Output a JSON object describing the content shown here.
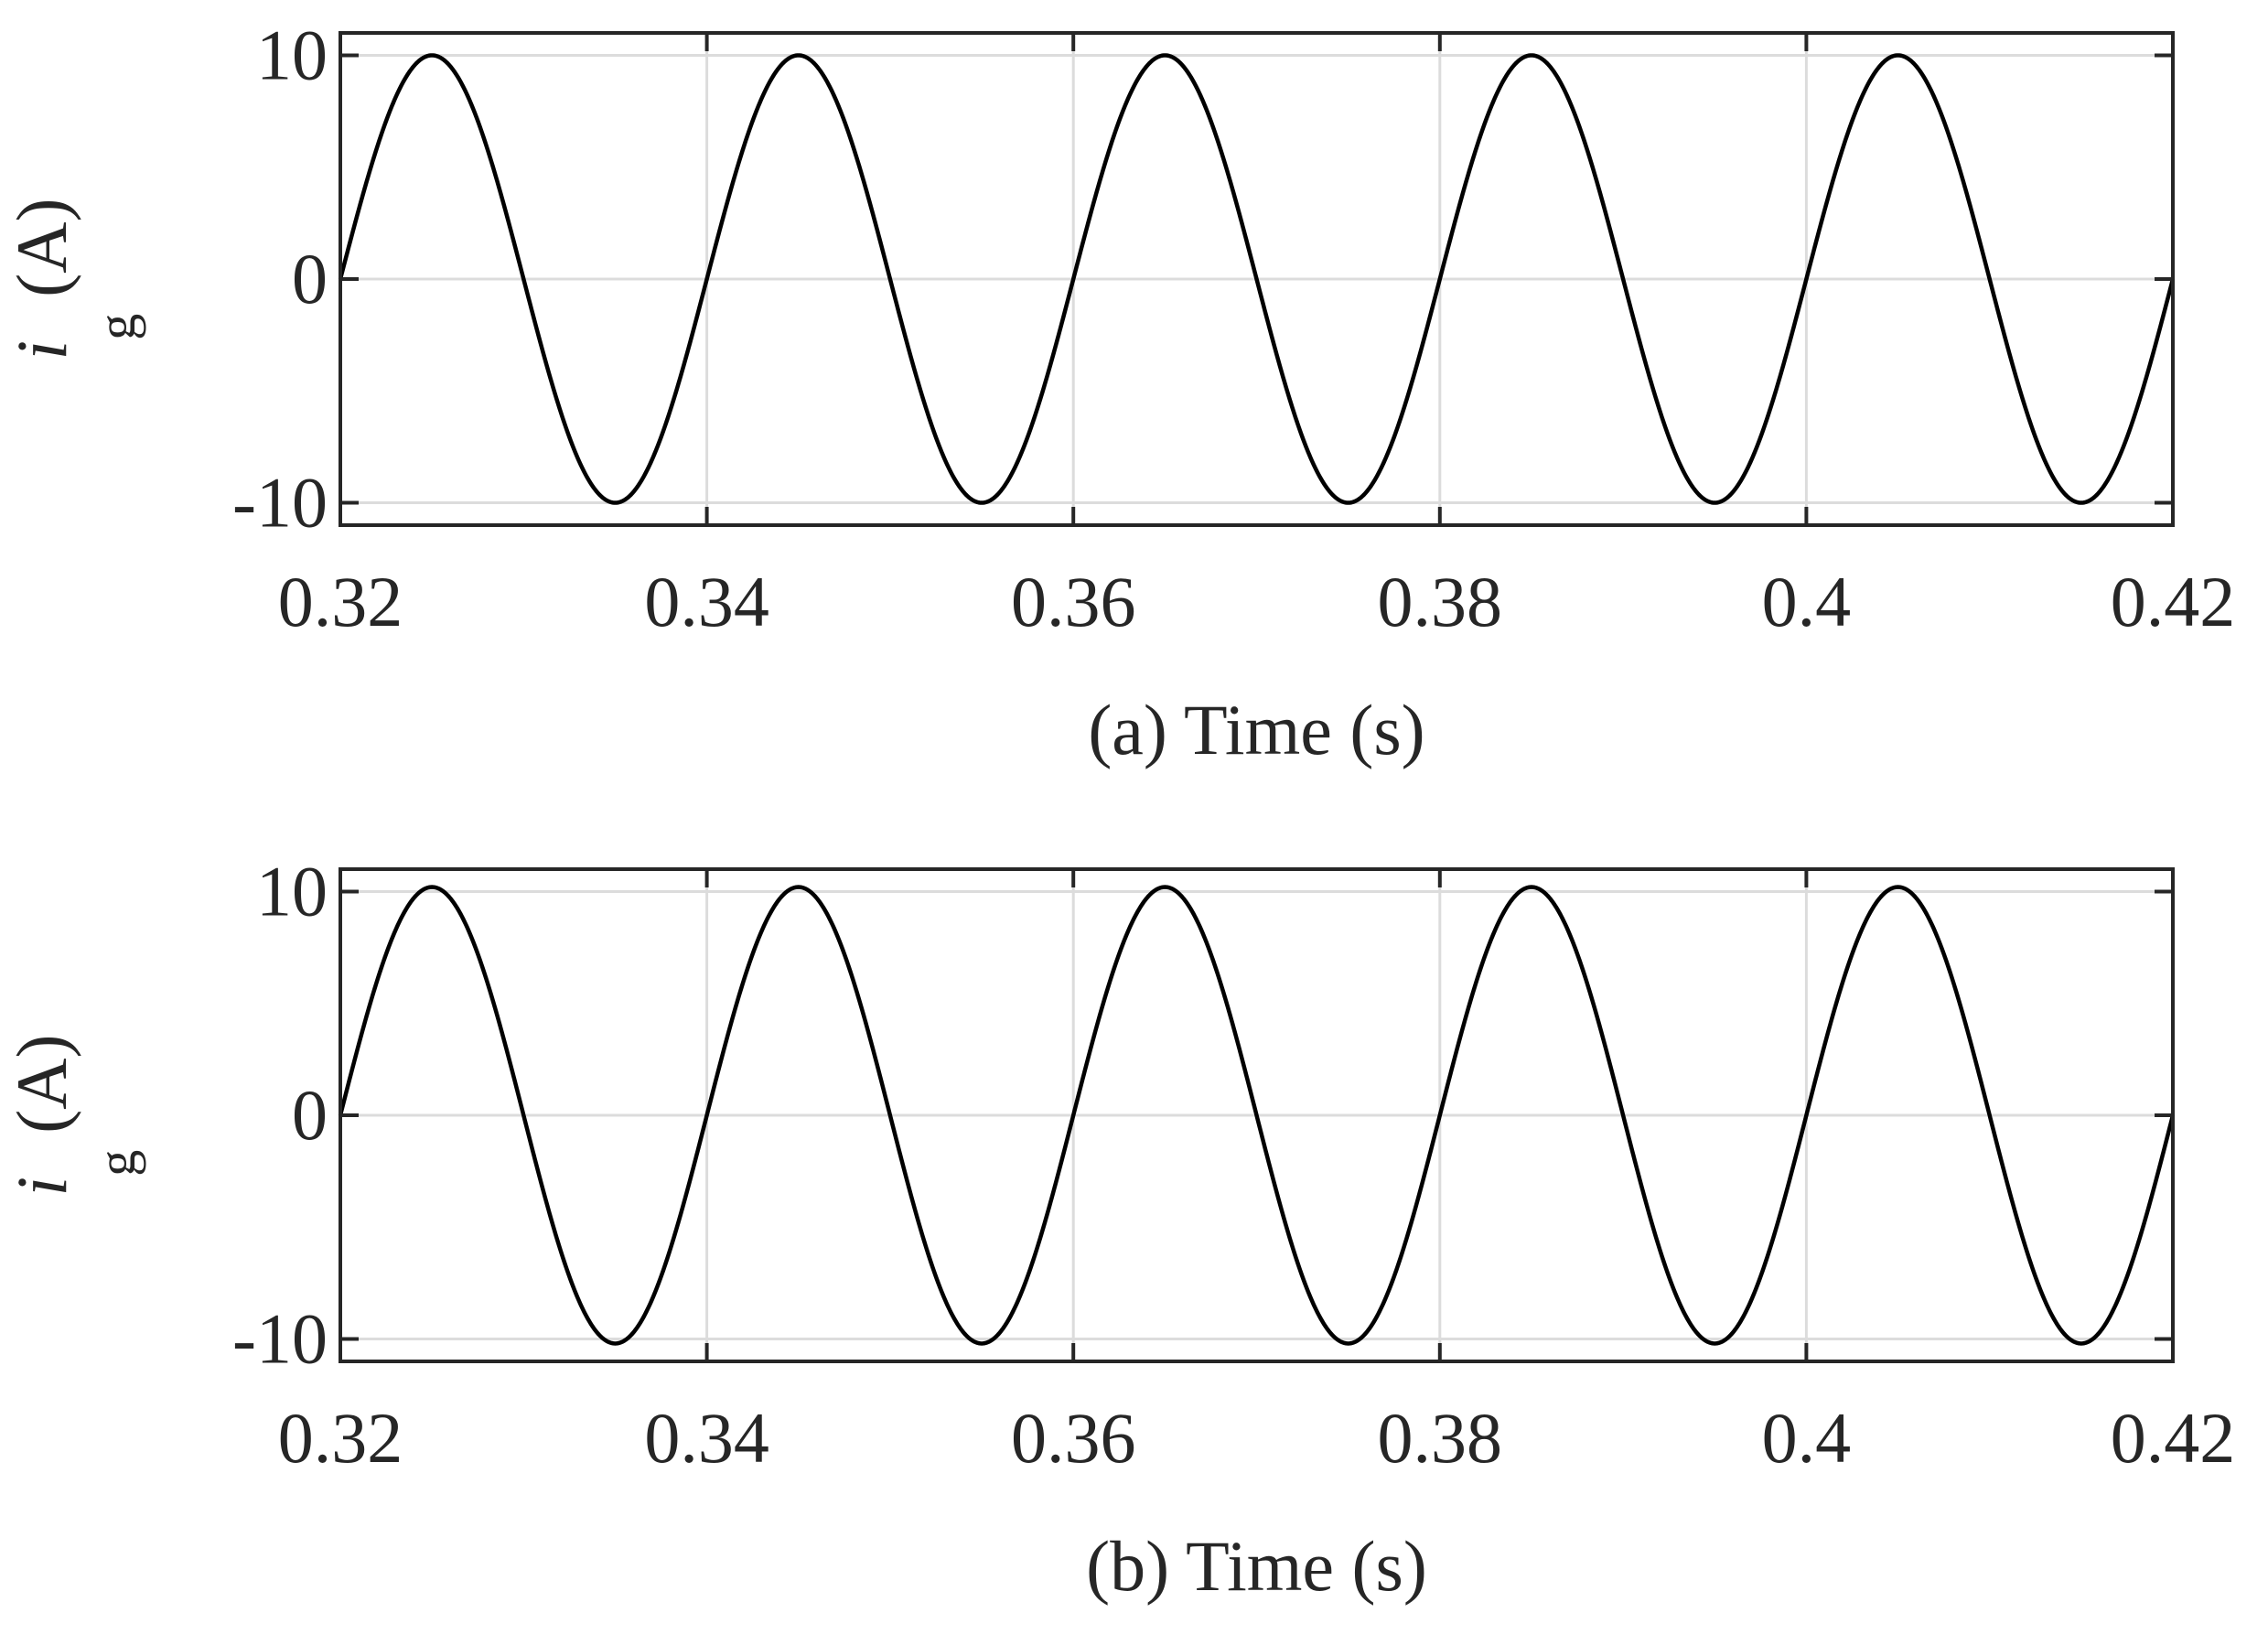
{
  "chart_data": [
    {
      "type": "line",
      "panel": "a",
      "xlabel": "(a) Time (s)",
      "ylabel": {
        "symbol": "i",
        "subscript": "g",
        "unit": "(A)"
      },
      "xlim": [
        0.32,
        0.42
      ],
      "ylim": [
        -11,
        11
      ],
      "xticks": [
        0.32,
        0.34,
        0.36,
        0.38,
        0.4,
        0.42
      ],
      "xtick_labels": [
        "0.32",
        "0.34",
        "0.36",
        "0.38",
        "0.4",
        "0.42"
      ],
      "yticks": [
        -10,
        0,
        10
      ],
      "ytick_labels": [
        "-10",
        "0",
        "10"
      ],
      "grid": true,
      "series": [
        {
          "waveform": "sine",
          "amplitude": 10,
          "frequency_hz": 50,
          "phase_zero_at_s": 0.32,
          "x_range": [
            0.32,
            0.42
          ]
        }
      ]
    },
    {
      "type": "line",
      "panel": "b",
      "xlabel": "(b) Time (s)",
      "ylabel": {
        "symbol": "i",
        "subscript": "g",
        "unit": "(A)"
      },
      "xlim": [
        0.32,
        0.42
      ],
      "ylim": [
        -11,
        11
      ],
      "xticks": [
        0.32,
        0.34,
        0.36,
        0.38,
        0.4,
        0.42
      ],
      "xtick_labels": [
        "0.32",
        "0.34",
        "0.36",
        "0.38",
        "0.4",
        "0.42"
      ],
      "yticks": [
        -10,
        0,
        10
      ],
      "ytick_labels": [
        "-10",
        "0",
        "10"
      ],
      "grid": true,
      "series": [
        {
          "waveform": "sine",
          "amplitude": 10.2,
          "frequency_hz": 50,
          "phase_zero_at_s": 0.32,
          "x_range": [
            0.32,
            0.42
          ]
        }
      ]
    }
  ]
}
